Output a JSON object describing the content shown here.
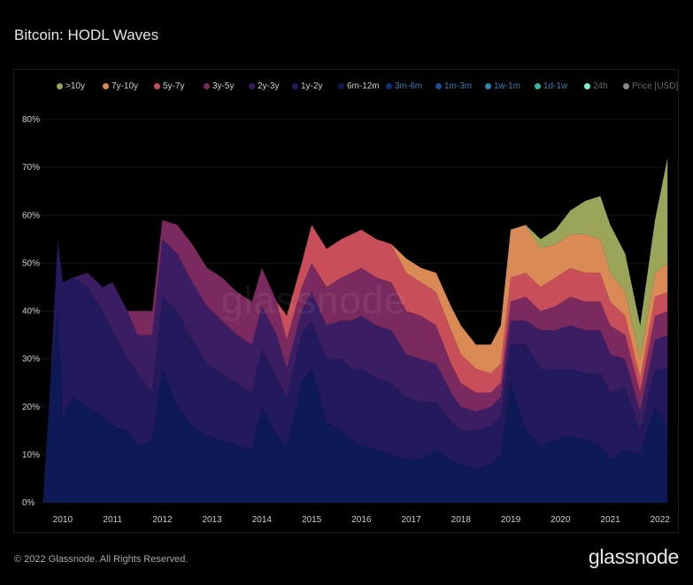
{
  "title": "Bitcoin: HODL Waves",
  "footer": "© 2022 Glassnode. All Rights Reserved.",
  "brand": "glassnode",
  "watermark": "glassnode",
  "chart_data": {
    "type": "area",
    "stacked": true,
    "title": "Bitcoin: HODL Waves",
    "xlabel": "",
    "ylabel": "",
    "xlim": [
      2009.45,
      2022.2
    ],
    "ylim": [
      0,
      80
    ],
    "x_ticks": [
      "2010",
      "2011",
      "2012",
      "2013",
      "2014",
      "2015",
      "2016",
      "2017",
      "2018",
      "2019",
      "2020",
      "2021",
      "2022"
    ],
    "y_ticks": [
      "0%",
      "10%",
      "20%",
      "30%",
      "40%",
      "50%",
      "60%",
      "70%",
      "80%"
    ],
    "legend_position": "top-left",
    "legend": [
      {
        "label": ">10y",
        "color": "#9aa55a"
      },
      {
        "label": "7y-10y",
        "color": "#d98a55"
      },
      {
        "label": "5y-7y",
        "color": "#c84f5a"
      },
      {
        "label": "3y-5y",
        "color": "#7a2a5e"
      },
      {
        "label": "2y-3y",
        "color": "#3a1d63"
      },
      {
        "label": "1y-2y",
        "color": "#221a5c"
      },
      {
        "label": "6m-12m",
        "color": "#0e1a55"
      },
      {
        "label": "3m-6m",
        "color": "#10307a"
      },
      {
        "label": "1m-3m",
        "color": "#1a4d9a"
      },
      {
        "label": "1w-1m",
        "color": "#2a88b8"
      },
      {
        "label": "1d-1w",
        "color": "#35b5a8"
      },
      {
        "label": "24h",
        "color": "#7ff2c8"
      },
      {
        "label": "Price [USD]",
        "color": "#8a8a8a"
      }
    ],
    "x": [
      2009.6,
      2009.75,
      2009.9,
      2010.0,
      2010.2,
      2010.5,
      2010.8,
      2011.0,
      2011.3,
      2011.5,
      2011.8,
      2012.0,
      2012.3,
      2012.6,
      2012.9,
      2013.2,
      2013.5,
      2013.8,
      2014.0,
      2014.3,
      2014.5,
      2014.8,
      2015.0,
      2015.3,
      2015.6,
      2015.8,
      2016.0,
      2016.3,
      2016.6,
      2016.9,
      2017.2,
      2017.5,
      2017.8,
      2018.0,
      2018.3,
      2018.6,
      2018.8,
      2019.0,
      2019.3,
      2019.6,
      2019.9,
      2020.2,
      2020.5,
      2020.8,
      2021.0,
      2021.3,
      2021.6,
      2021.9,
      2022.15
    ],
    "series": [
      {
        "name": "6m-12m",
        "values": [
          0,
          25,
          40,
          18,
          22,
          20,
          18,
          16,
          15,
          12,
          13,
          28,
          20,
          16,
          14,
          13,
          12,
          11,
          20,
          14,
          12,
          25,
          28,
          17,
          15,
          13,
          12,
          11,
          10,
          9,
          9,
          11,
          9,
          8,
          7,
          8,
          10,
          25,
          15,
          12,
          13,
          14,
          13,
          12,
          9,
          11,
          10,
          20,
          16
        ]
      },
      {
        "name": "1y-2y",
        "values": [
          0,
          0,
          15,
          28,
          25,
          25,
          22,
          20,
          15,
          15,
          10,
          15,
          20,
          18,
          15,
          14,
          13,
          12,
          12,
          12,
          10,
          10,
          10,
          13,
          15,
          15,
          16,
          15,
          15,
          13,
          12,
          10,
          8,
          7,
          8,
          8,
          8,
          8,
          18,
          16,
          15,
          14,
          14,
          15,
          14,
          13,
          5,
          8,
          12
        ]
      },
      {
        "name": "2y-3y",
        "values": [
          0,
          0,
          0,
          0,
          0,
          3,
          5,
          10,
          10,
          8,
          12,
          12,
          12,
          12,
          12,
          11,
          10,
          10,
          9,
          9,
          6,
          5,
          6,
          7,
          8,
          10,
          11,
          11,
          11,
          9,
          9,
          8,
          6,
          5,
          4,
          4,
          4,
          5,
          5,
          8,
          8,
          9,
          9,
          9,
          8,
          6,
          4,
          6,
          7
        ]
      },
      {
        "name": "3y-5y",
        "values": [
          0,
          0,
          0,
          0,
          0,
          0,
          0,
          0,
          0,
          5,
          5,
          4,
          6,
          8,
          8,
          9,
          9,
          9,
          8,
          7,
          6,
          5,
          6,
          8,
          9,
          10,
          10,
          10,
          10,
          9,
          9,
          8,
          6,
          5,
          4,
          3,
          3,
          4,
          5,
          4,
          5,
          6,
          6,
          6,
          6,
          5,
          4,
          5,
          5
        ]
      },
      {
        "name": "5y-7y",
        "values": [
          0,
          0,
          0,
          0,
          0,
          0,
          0,
          0,
          0,
          0,
          0,
          0,
          0,
          0,
          0,
          0,
          0,
          0,
          0,
          0,
          5,
          5,
          8,
          8,
          8,
          8,
          8,
          8,
          8,
          8,
          7,
          7,
          7,
          6,
          5,
          4,
          4,
          5,
          5,
          5,
          6,
          6,
          6,
          6,
          5,
          4,
          3,
          4,
          4
        ]
      },
      {
        "name": "7y-10y",
        "values": [
          0,
          0,
          0,
          0,
          0,
          0,
          0,
          0,
          0,
          0,
          0,
          0,
          0,
          0,
          0,
          0,
          0,
          0,
          0,
          0,
          0,
          0,
          0,
          0,
          0,
          0,
          0,
          0,
          0,
          3,
          3,
          4,
          5,
          6,
          5,
          6,
          8,
          10,
          10,
          8,
          7,
          7,
          8,
          7,
          6,
          5,
          4,
          5,
          6
        ]
      },
      {
        "name": ">10y",
        "values": [
          0,
          0,
          0,
          0,
          0,
          0,
          0,
          0,
          0,
          0,
          0,
          0,
          0,
          0,
          0,
          0,
          0,
          0,
          0,
          0,
          0,
          0,
          0,
          0,
          0,
          0,
          0,
          0,
          0,
          0,
          0,
          0,
          0,
          0,
          0,
          0,
          0,
          0,
          0,
          2,
          3,
          5,
          7,
          9,
          10,
          8,
          7,
          11,
          22
        ]
      }
    ]
  }
}
